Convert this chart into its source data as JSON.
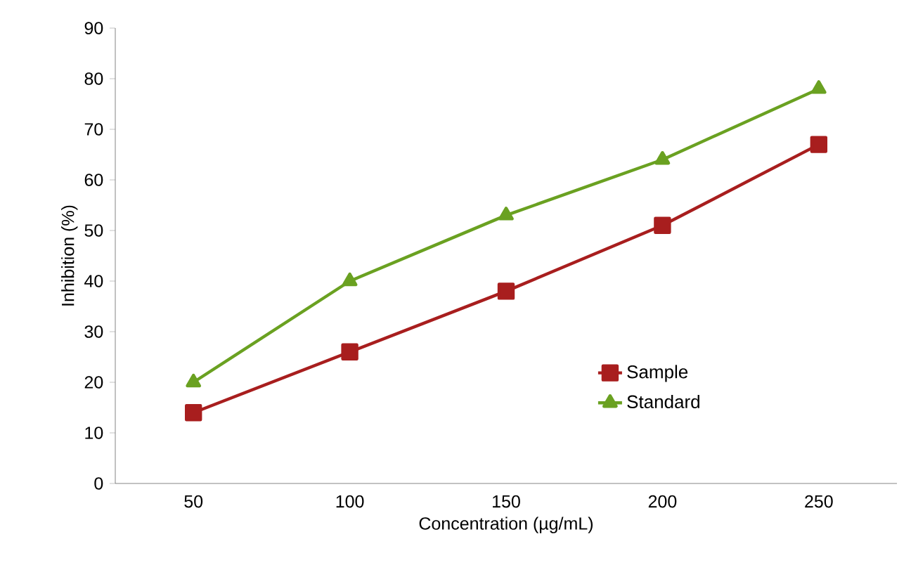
{
  "chart_data": {
    "type": "line",
    "xlabel": "Concentration (µg/mL)",
    "ylabel": "Inhibition (%)",
    "categories": [
      "50",
      "100",
      "150",
      "200",
      "250"
    ],
    "series": [
      {
        "name": "Sample",
        "color": "#a81e1e",
        "marker": "square",
        "values": [
          14,
          26,
          38,
          51,
          67
        ]
      },
      {
        "name": "Standard",
        "color": "#6aa121",
        "marker": "triangle",
        "values": [
          20,
          40,
          53,
          64,
          78
        ]
      }
    ],
    "ylim": [
      0,
      90
    ],
    "yticks": [
      0,
      10,
      20,
      30,
      40,
      50,
      60,
      70,
      80,
      90
    ],
    "grid": false,
    "legend": "right",
    "line_style": "solid"
  }
}
